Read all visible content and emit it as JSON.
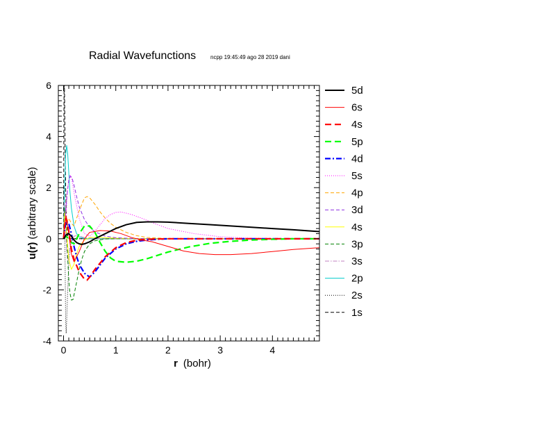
{
  "chart_data": {
    "type": "line",
    "title": "Radial Wavefunctions",
    "subtitle": "ncpp 19:45:49 ago 28 2019 dani",
    "xlabel": {
      "bold": "r",
      "rest": "(bohr)"
    },
    "ylabel": {
      "bold": "u(r)",
      "rest": "(arbitrary scale)"
    },
    "xlim": [
      -0.1,
      4.9
    ],
    "ylim": [
      -4,
      6
    ],
    "xticks": [
      "0",
      "1",
      "2",
      "3",
      "4"
    ],
    "yticks": [
      "-4",
      "-2",
      "0",
      "2",
      "4",
      "6"
    ],
    "grid": false,
    "legend_position": "right",
    "series": [
      {
        "name": "5d",
        "color": "#000000",
        "style": "solid-thick",
        "x": [
          0,
          0.02,
          0.05,
          0.1,
          0.15,
          0.2,
          0.25,
          0.3,
          0.35,
          0.4,
          0.5,
          0.6,
          0.7,
          0.8,
          0.9,
          1.0,
          1.2,
          1.4,
          1.6,
          1.8,
          2.0,
          2.4,
          2.8,
          3.2,
          3.6,
          4.0,
          4.4,
          4.9
        ],
        "y": [
          0,
          0.05,
          0.15,
          0.2,
          0.1,
          -0.05,
          -0.15,
          -0.2,
          -0.22,
          -0.2,
          -0.12,
          0.0,
          0.1,
          0.2,
          0.3,
          0.4,
          0.55,
          0.64,
          0.66,
          0.66,
          0.65,
          0.6,
          0.55,
          0.5,
          0.45,
          0.4,
          0.35,
          0.28
        ]
      },
      {
        "name": "6s",
        "color": "#ff0000",
        "style": "solid-thin",
        "x": [
          0,
          0.02,
          0.05,
          0.1,
          0.15,
          0.2,
          0.3,
          0.4,
          0.5,
          0.7,
          0.9,
          1.1,
          1.3,
          1.5,
          1.7,
          2.0,
          2.3,
          2.6,
          2.9,
          3.2,
          3.6,
          4.0,
          4.4,
          4.9
        ],
        "y": [
          0,
          0.6,
          0.9,
          0.2,
          -0.6,
          -0.9,
          -0.5,
          0.0,
          0.25,
          0.32,
          0.3,
          0.2,
          0.05,
          -0.05,
          -0.12,
          -0.3,
          -0.48,
          -0.58,
          -0.62,
          -0.62,
          -0.58,
          -0.5,
          -0.42,
          -0.35
        ]
      },
      {
        "name": "4s",
        "color": "#ff0000",
        "style": "dashed-thick",
        "x": [
          0,
          0.02,
          0.05,
          0.1,
          0.15,
          0.2,
          0.3,
          0.4,
          0.45,
          0.5,
          0.6,
          0.8,
          1.0,
          1.2,
          1.4,
          1.6,
          2.0,
          2.5,
          3.0,
          4.0,
          4.9
        ],
        "y": [
          0,
          0.5,
          0.8,
          0.3,
          -0.4,
          -0.8,
          -1.3,
          -1.58,
          -1.62,
          -1.5,
          -1.2,
          -0.7,
          -0.35,
          -0.15,
          -0.06,
          -0.02,
          0,
          0,
          0,
          0,
          0
        ]
      },
      {
        "name": "5p",
        "color": "#00ff00",
        "style": "dashed-thick",
        "x": [
          0,
          0.05,
          0.1,
          0.15,
          0.2,
          0.3,
          0.4,
          0.5,
          0.6,
          0.7,
          0.8,
          0.9,
          1.0,
          1.2,
          1.4,
          1.6,
          1.8,
          2.0,
          2.4,
          2.8,
          3.2,
          3.6,
          4.0,
          4.4,
          4.9
        ],
        "y": [
          0,
          0.1,
          0.0,
          -0.15,
          -0.2,
          0.2,
          0.5,
          0.5,
          0.25,
          -0.15,
          -0.5,
          -0.75,
          -0.88,
          -0.92,
          -0.88,
          -0.78,
          -0.65,
          -0.52,
          -0.32,
          -0.18,
          -0.1,
          -0.05,
          -0.02,
          0,
          0
        ]
      },
      {
        "name": "4d",
        "color": "#0000ff",
        "style": "dashdot-thick",
        "x": [
          0,
          0.02,
          0.05,
          0.1,
          0.15,
          0.2,
          0.25,
          0.3,
          0.4,
          0.5,
          0.6,
          0.8,
          1.0,
          1.2,
          1.4,
          1.6,
          1.8,
          2.0,
          2.5,
          3.0,
          4.0,
          4.9
        ],
        "y": [
          0,
          0.3,
          0.7,
          0.6,
          0.2,
          -0.3,
          -0.7,
          -1.0,
          -1.35,
          -1.5,
          -1.3,
          -0.75,
          -0.4,
          -0.2,
          -0.1,
          -0.05,
          -0.02,
          0,
          0,
          0,
          0,
          0
        ]
      },
      {
        "name": "5s",
        "color": "#ff00ff",
        "style": "dotted",
        "x": [
          0,
          0.05,
          0.08,
          0.12,
          0.16,
          0.2,
          0.3,
          0.4,
          0.5,
          0.6,
          0.7,
          0.8,
          0.9,
          1.0,
          1.1,
          1.2,
          1.3,
          1.5,
          1.8,
          2.0,
          2.5,
          3.0,
          3.5,
          4.0,
          4.9
        ],
        "y": [
          0,
          1.0,
          2.0,
          2.5,
          2.3,
          1.8,
          0.8,
          0.2,
          0.1,
          0.3,
          0.55,
          0.8,
          0.95,
          1.03,
          1.05,
          1.0,
          0.95,
          0.8,
          0.55,
          0.4,
          0.2,
          0.08,
          0.03,
          0.01,
          0
        ]
      },
      {
        "name": "4p",
        "color": "#ffa500",
        "style": "dashed-thin",
        "x": [
          0,
          0.05,
          0.1,
          0.15,
          0.2,
          0.3,
          0.4,
          0.45,
          0.5,
          0.6,
          0.7,
          0.8,
          0.9,
          1.0,
          1.2,
          1.4,
          1.6,
          2.0,
          2.5,
          3.0,
          4.9
        ],
        "y": [
          0,
          0.6,
          0.8,
          0.6,
          0.5,
          1.1,
          1.6,
          1.65,
          1.6,
          1.35,
          1.05,
          0.8,
          0.6,
          0.45,
          0.25,
          0.12,
          0.05,
          0.01,
          0,
          0,
          0
        ]
      },
      {
        "name": "3d",
        "color": "#8a2be2",
        "style": "dashed-thin",
        "x": [
          0,
          0.03,
          0.06,
          0.1,
          0.13,
          0.16,
          0.2,
          0.25,
          0.3,
          0.4,
          0.5,
          0.6,
          0.8,
          1.0,
          1.3,
          1.6,
          2.0,
          3.0,
          4.9
        ],
        "y": [
          0,
          0.8,
          1.6,
          2.3,
          2.45,
          2.4,
          2.1,
          1.65,
          1.25,
          0.75,
          0.45,
          0.27,
          0.1,
          0.04,
          0.01,
          0,
          0,
          0,
          0
        ]
      },
      {
        "name": "4s",
        "color": "#ffff00",
        "style": "solid-thin",
        "x": [
          0,
          0.02,
          0.04,
          0.06,
          0.1,
          0.15,
          0.2,
          0.25,
          0.3,
          0.4,
          0.5,
          0.7,
          1.0,
          1.5,
          2.0,
          4.9
        ],
        "y": [
          0,
          1.0,
          0.8,
          0.2,
          -0.8,
          -1.2,
          -1.0,
          -0.6,
          -0.3,
          -0.05,
          0.05,
          0.05,
          0.02,
          0,
          0,
          0
        ]
      },
      {
        "name": "3p",
        "color": "#008000",
        "style": "dashed-thin",
        "x": [
          0,
          0.02,
          0.05,
          0.08,
          0.1,
          0.12,
          0.15,
          0.18,
          0.2,
          0.25,
          0.3,
          0.35,
          0.4,
          0.5,
          0.6,
          0.8,
          1.0,
          1.3,
          2.0,
          4.9
        ],
        "y": [
          0,
          1.2,
          0.5,
          -0.8,
          -1.6,
          -2.1,
          -2.4,
          -2.38,
          -2.2,
          -1.7,
          -1.2,
          -0.8,
          -0.5,
          -0.2,
          -0.08,
          -0.01,
          0,
          0,
          0,
          0
        ]
      },
      {
        "name": "3s",
        "color": "#c080c0",
        "style": "dashdot-thin",
        "x": [
          0,
          0.02,
          0.04,
          0.06,
          0.08,
          0.1,
          0.12,
          0.15,
          0.2,
          0.25,
          0.3,
          0.4,
          0.5,
          0.7,
          1.0,
          4.9
        ],
        "y": [
          0,
          1.4,
          0.5,
          -0.5,
          -0.9,
          -0.7,
          -0.4,
          -0.1,
          0.1,
          0.12,
          0.1,
          0.05,
          0.02,
          0,
          0,
          0
        ]
      },
      {
        "name": "2p",
        "color": "#00cccc",
        "style": "solid-thin",
        "x": [
          0,
          0.02,
          0.04,
          0.06,
          0.08,
          0.1,
          0.12,
          0.15,
          0.2,
          0.25,
          0.3,
          0.4,
          0.5,
          0.7,
          1.0,
          4.9
        ],
        "y": [
          0,
          2.0,
          3.3,
          3.65,
          3.3,
          2.6,
          1.9,
          1.2,
          0.5,
          0.2,
          0.07,
          0.01,
          0,
          0,
          0,
          0
        ]
      },
      {
        "name": "2s",
        "color": "#000000",
        "style": "dotted",
        "x": [
          0,
          0.01,
          0.02,
          0.03,
          0.04,
          0.05,
          0.06,
          0.08,
          0.1,
          0.12,
          0.15,
          0.2,
          0.3,
          0.5,
          1.0,
          4.9
        ],
        "y": [
          0,
          2.0,
          1.0,
          -1.0,
          -3.2,
          -3.7,
          -3.2,
          -2.0,
          -1.0,
          -0.4,
          -0.1,
          0,
          0,
          0,
          0,
          0
        ]
      },
      {
        "name": "1s",
        "color": "#000000",
        "style": "dashed-thin",
        "x": [
          0,
          0.005,
          0.01,
          0.015,
          0.02,
          0.025,
          0.03,
          0.04,
          0.05,
          0.06,
          0.08,
          0.1,
          0.15,
          0.2,
          0.5,
          4.9
        ],
        "y": [
          0,
          4.0,
          6.2,
          6.2,
          5.5,
          4.5,
          3.5,
          2.0,
          1.0,
          0.5,
          0.1,
          0.02,
          0,
          0,
          0,
          0
        ]
      }
    ]
  }
}
